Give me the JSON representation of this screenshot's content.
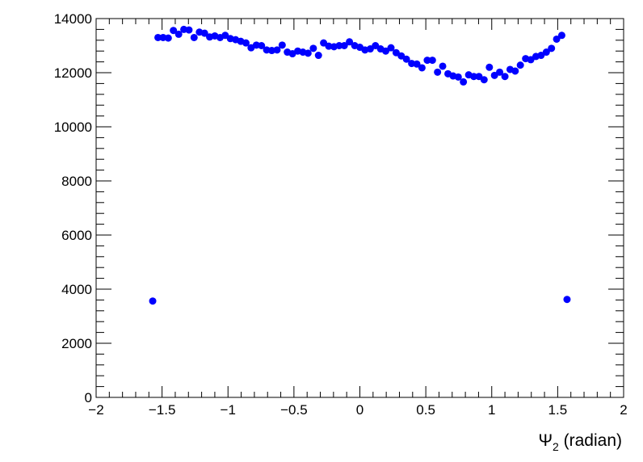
{
  "chart_data": {
    "type": "scatter",
    "title": "",
    "xlabel": "Ψ₂ (radian)",
    "xlabel_parts": {
      "symbol": "Ψ",
      "subscript": "2",
      "rest": " (radian)"
    },
    "ylabel": "",
    "xlim": [
      -2,
      2
    ],
    "ylim": [
      0,
      14000
    ],
    "x_ticks": [
      "−2",
      "−1.5",
      "−1",
      "−0.5",
      "0",
      "0.5",
      "1",
      "1.5",
      "2"
    ],
    "y_ticks": [
      "0",
      "2000",
      "4000",
      "6000",
      "8000",
      "10000",
      "12000",
      "14000"
    ],
    "grid": false,
    "marker_color": "#0000ff",
    "series": [
      {
        "x": [
          -1.571,
          -1.531,
          -1.492,
          -1.453,
          -1.414,
          -1.374,
          -1.335,
          -1.296,
          -1.257,
          -1.217,
          -1.178,
          -1.139,
          -1.1,
          -1.06,
          -1.021,
          -0.982,
          -0.942,
          -0.903,
          -0.864,
          -0.825,
          -0.785,
          -0.746,
          -0.707,
          -0.668,
          -0.628,
          -0.589,
          -0.55,
          -0.511,
          -0.471,
          -0.432,
          -0.393,
          -0.353,
          -0.314,
          -0.275,
          -0.236,
          -0.196,
          -0.157,
          -0.118,
          -0.079,
          -0.039,
          0.0,
          0.039,
          0.079,
          0.118,
          0.157,
          0.196,
          0.236,
          0.275,
          0.314,
          0.353,
          0.393,
          0.432,
          0.471,
          0.511,
          0.55,
          0.589,
          0.628,
          0.668,
          0.707,
          0.746,
          0.785,
          0.825,
          0.864,
          0.903,
          0.942,
          0.982,
          1.021,
          1.06,
          1.1,
          1.139,
          1.178,
          1.217,
          1.257,
          1.296,
          1.335,
          1.374,
          1.414,
          1.453,
          1.492,
          1.531,
          1.571
        ],
        "y": [
          3560,
          13300,
          13300,
          13280,
          13560,
          13420,
          13600,
          13580,
          13300,
          13500,
          13460,
          13320,
          13360,
          13300,
          13380,
          13260,
          13220,
          13160,
          13100,
          12920,
          13020,
          13000,
          12840,
          12820,
          12840,
          13020,
          12760,
          12700,
          12800,
          12760,
          12720,
          12900,
          12640,
          13100,
          12980,
          12960,
          13000,
          13000,
          13140,
          13000,
          12940,
          12840,
          12880,
          13000,
          12880,
          12800,
          12920,
          12740,
          12620,
          12500,
          12340,
          12320,
          12180,
          12460,
          12460,
          12020,
          12240,
          11960,
          11880,
          11840,
          11660,
          11920,
          11860,
          11860,
          11740,
          12200,
          11900,
          12020,
          11860,
          12120,
          12060,
          12280,
          12520,
          12480,
          12600,
          12640,
          12760,
          12900,
          13240,
          13380,
          3620
        ]
      }
    ]
  }
}
